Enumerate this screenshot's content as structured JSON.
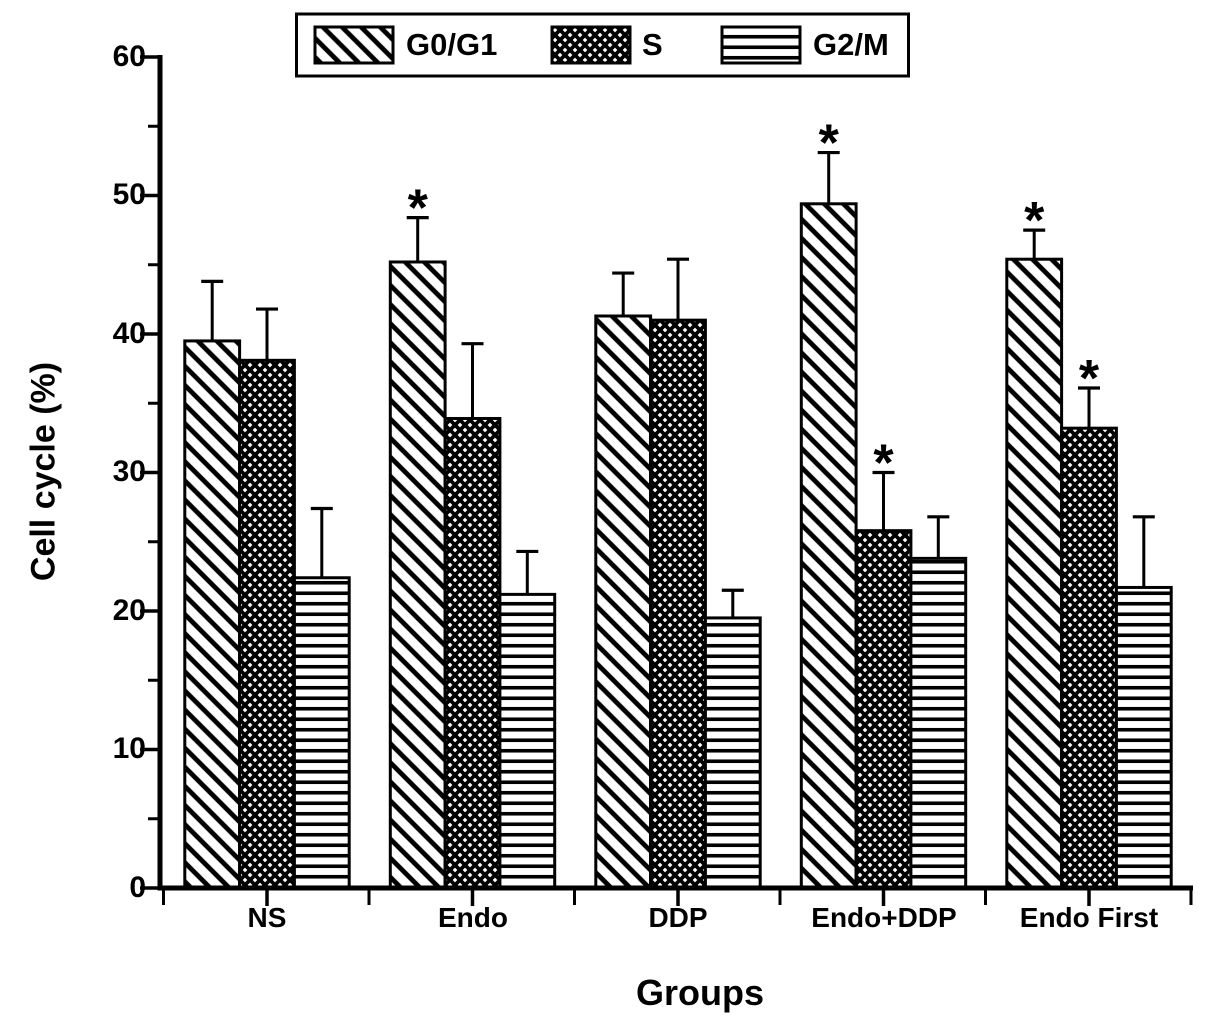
{
  "chart_data": {
    "type": "bar",
    "title": "",
    "xlabel": "Groups",
    "ylabel": "Cell cycle (%)",
    "ylim": [
      0,
      60
    ],
    "ytick_labels": [
      "0",
      "10",
      "20",
      "30",
      "40",
      "50",
      "60"
    ],
    "ytick_values": [
      0,
      10,
      20,
      30,
      40,
      50,
      60
    ],
    "minor_ytick_step": 5,
    "grid": false,
    "legend_position": "top-center",
    "significance_marker": "*",
    "ink_color": "#000000",
    "background_color": "#ffffff",
    "categories": [
      "NS",
      "Endo",
      "DDP",
      "Endo+DDP",
      "Endo First"
    ],
    "legend": [
      {
        "label": "G0/G1",
        "pattern": "diagonal-hatch"
      },
      {
        "label": "S",
        "pattern": "cross-hatch"
      },
      {
        "label": "G2/M",
        "pattern": "horizontal-lines"
      }
    ],
    "series": [
      {
        "name": "G0/G1",
        "pattern": "diagonal-hatch",
        "values": [
          39.5,
          45.2,
          41.3,
          49.4,
          45.4
        ],
        "errors": [
          4.3,
          3.2,
          3.1,
          3.7,
          2.1
        ],
        "significant": [
          false,
          true,
          false,
          true,
          true
        ]
      },
      {
        "name": "S",
        "pattern": "cross-hatch",
        "values": [
          38.1,
          33.9,
          41.0,
          25.8,
          33.2
        ],
        "errors": [
          3.7,
          5.4,
          4.4,
          4.2,
          2.9
        ],
        "significant": [
          false,
          false,
          false,
          true,
          true
        ]
      },
      {
        "name": "G2/M",
        "pattern": "horizontal-lines",
        "values": [
          22.4,
          21.2,
          19.5,
          23.8,
          21.7
        ],
        "errors": [
          5.0,
          3.1,
          2.0,
          3.0,
          5.1
        ],
        "significant": [
          false,
          false,
          false,
          false,
          false
        ]
      }
    ]
  }
}
